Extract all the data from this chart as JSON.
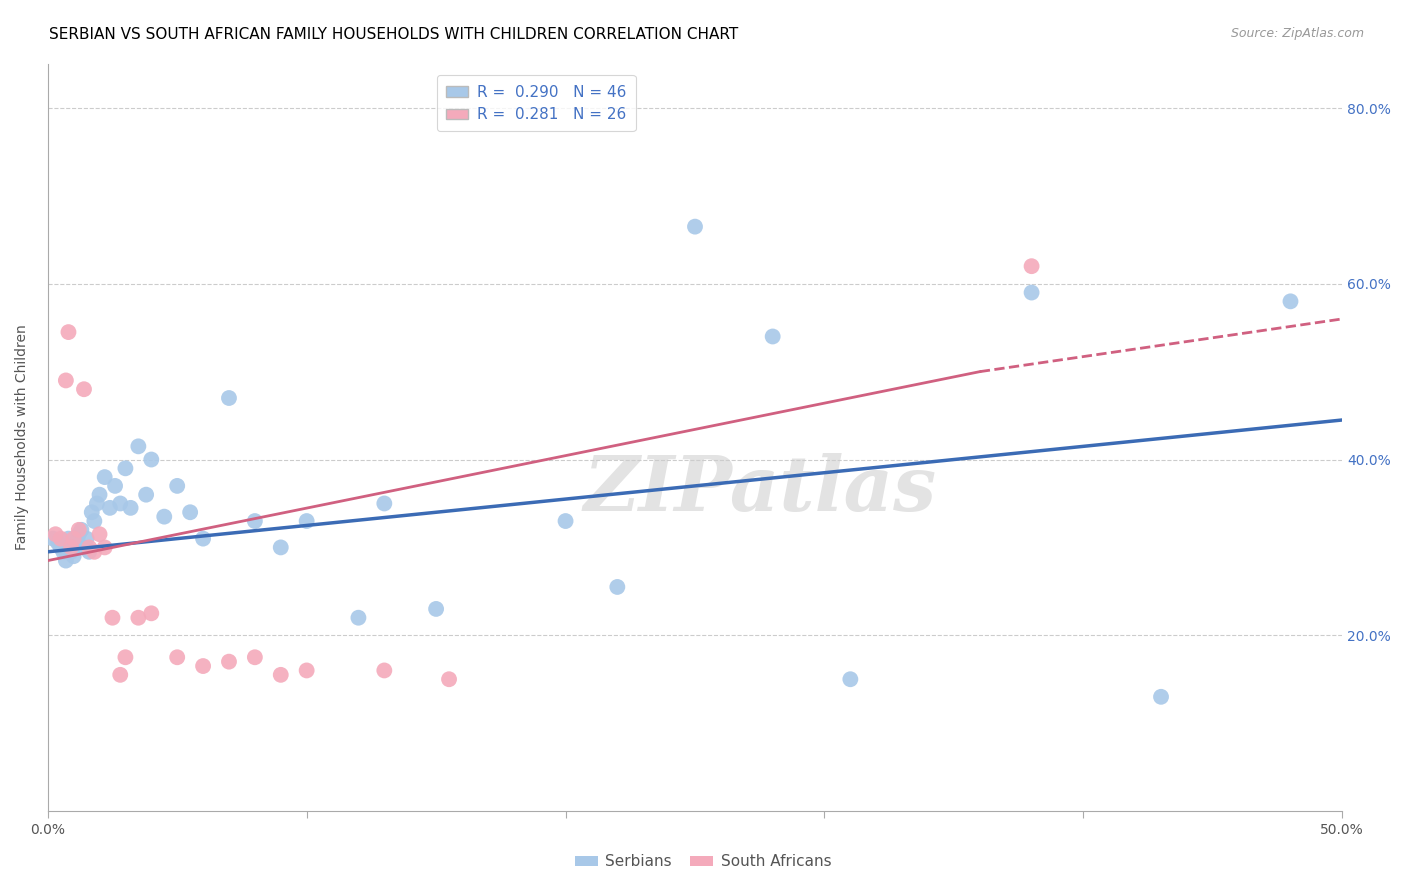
{
  "title": "SERBIAN VS SOUTH AFRICAN FAMILY HOUSEHOLDS WITH CHILDREN CORRELATION CHART",
  "source": "Source: ZipAtlas.com",
  "ylabel": "Family Households with Children",
  "xlim": [
    0.0,
    0.5
  ],
  "ylim": [
    0.0,
    0.85
  ],
  "yticks": [
    0.2,
    0.4,
    0.6,
    0.8
  ],
  "ytick_labels": [
    "20.0%",
    "40.0%",
    "60.0%",
    "80.0%"
  ],
  "xticks": [
    0.0,
    0.1,
    0.2,
    0.3,
    0.4,
    0.5
  ],
  "xtick_labels": [
    "0.0%",
    "",
    "",
    "",
    "",
    "50.0%"
  ],
  "watermark": "ZIPatlas",
  "serbian_color": "#A8C8E8",
  "sa_color": "#F4AABB",
  "serbian_line_color": "#3B6BB5",
  "sa_line_color": "#D06080",
  "serbian_x": [
    0.002,
    0.004,
    0.005,
    0.006,
    0.007,
    0.008,
    0.009,
    0.01,
    0.011,
    0.012,
    0.013,
    0.014,
    0.015,
    0.016,
    0.017,
    0.018,
    0.019,
    0.02,
    0.022,
    0.024,
    0.026,
    0.028,
    0.03,
    0.032,
    0.035,
    0.038,
    0.04,
    0.045,
    0.05,
    0.055,
    0.06,
    0.07,
    0.08,
    0.09,
    0.1,
    0.12,
    0.13,
    0.15,
    0.2,
    0.22,
    0.25,
    0.28,
    0.31,
    0.38,
    0.43,
    0.48
  ],
  "serbian_y": [
    0.31,
    0.305,
    0.3,
    0.295,
    0.285,
    0.31,
    0.295,
    0.29,
    0.305,
    0.315,
    0.32,
    0.3,
    0.31,
    0.295,
    0.34,
    0.33,
    0.35,
    0.36,
    0.38,
    0.345,
    0.37,
    0.35,
    0.39,
    0.345,
    0.415,
    0.36,
    0.4,
    0.335,
    0.37,
    0.34,
    0.31,
    0.47,
    0.33,
    0.3,
    0.33,
    0.22,
    0.35,
    0.23,
    0.33,
    0.255,
    0.665,
    0.54,
    0.15,
    0.59,
    0.13,
    0.58
  ],
  "sa_x": [
    0.003,
    0.005,
    0.007,
    0.008,
    0.009,
    0.01,
    0.012,
    0.014,
    0.016,
    0.018,
    0.02,
    0.022,
    0.025,
    0.028,
    0.03,
    0.035,
    0.04,
    0.05,
    0.06,
    0.07,
    0.08,
    0.09,
    0.1,
    0.13,
    0.155,
    0.38
  ],
  "sa_y": [
    0.315,
    0.31,
    0.49,
    0.545,
    0.3,
    0.31,
    0.32,
    0.48,
    0.3,
    0.295,
    0.315,
    0.3,
    0.22,
    0.155,
    0.175,
    0.22,
    0.225,
    0.175,
    0.165,
    0.17,
    0.175,
    0.155,
    0.16,
    0.16,
    0.15,
    0.62
  ],
  "title_fontsize": 11,
  "axis_label_fontsize": 10,
  "tick_fontsize": 10,
  "legend_fontsize": 11,
  "serbian_line_x0": 0.0,
  "serbian_line_x1": 0.5,
  "serbian_line_y0": 0.295,
  "serbian_line_y1": 0.445,
  "sa_line_x0": 0.0,
  "sa_line_x1": 0.36,
  "sa_line_x1_dash": 0.5,
  "sa_line_y0": 0.285,
  "sa_line_y1": 0.5,
  "sa_line_y1_dash": 0.56
}
